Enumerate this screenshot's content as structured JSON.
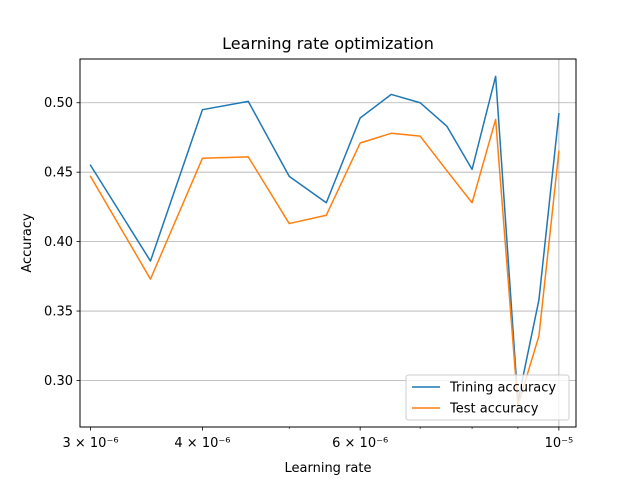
{
  "chart_data": {
    "type": "line",
    "title": "Learning rate optimization",
    "xlabel": "Learning rate",
    "ylabel": "Accuracy",
    "xscale": "log",
    "xlim": [
      2.92e-06,
      1.045e-05
    ],
    "ylim": [
      0.2665,
      0.5315
    ],
    "grid": "horizontal major + vertical major at 1e-5",
    "legend_position": "lower-right",
    "x": [
      3e-06,
      3.5e-06,
      4e-06,
      4.5e-06,
      5e-06,
      5.5e-06,
      6e-06,
      6.5e-06,
      7e-06,
      7.5e-06,
      8e-06,
      8.5e-06,
      9e-06,
      9.5e-06,
      1e-05
    ],
    "x_ticks": [
      {
        "value": 3e-06,
        "label": "3 × 10⁻⁶"
      },
      {
        "value": 4e-06,
        "label": "4 × 10⁻⁶"
      },
      {
        "value": 6e-06,
        "label": "6 × 10⁻⁶"
      },
      {
        "value": 1e-05,
        "label": "10⁻⁵"
      }
    ],
    "x_minor_ticks": [
      5e-06,
      7e-06,
      8e-06,
      9e-06
    ],
    "y_ticks": [
      {
        "value": 0.3,
        "label": "0.30"
      },
      {
        "value": 0.35,
        "label": "0.35"
      },
      {
        "value": 0.4,
        "label": "0.40"
      },
      {
        "value": 0.45,
        "label": "0.45"
      },
      {
        "value": 0.5,
        "label": "0.50"
      }
    ],
    "series": [
      {
        "name": "Trining accuracy",
        "color": "#1f77b4",
        "values": [
          0.455,
          0.386,
          0.495,
          0.501,
          0.447,
          0.428,
          0.489,
          0.506,
          0.5,
          0.483,
          0.452,
          0.519,
          0.285,
          0.358,
          0.492
        ]
      },
      {
        "name": "Test accuracy",
        "color": "#ff7f0e",
        "values": [
          0.447,
          0.373,
          0.46,
          0.461,
          0.413,
          0.419,
          0.471,
          0.478,
          0.476,
          0.451,
          0.428,
          0.488,
          0.282,
          0.332,
          0.465
        ]
      }
    ]
  }
}
